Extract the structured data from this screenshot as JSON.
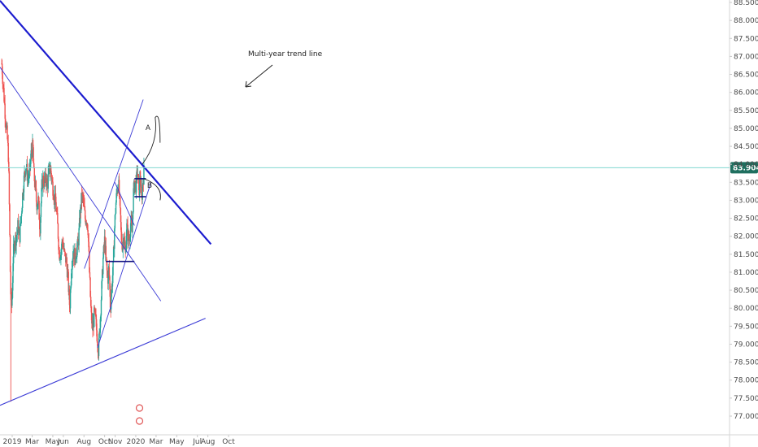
{
  "chart_data": {
    "type": "candlestick",
    "title": "",
    "xlabel": "",
    "ylabel": "",
    "grid": false,
    "x_ticks": [
      "2019",
      "Mar",
      "May",
      "Jun",
      "Aug",
      "Oct",
      "Nov",
      "2020",
      "Mar",
      "May",
      "Jul",
      "Aug",
      "Oct"
    ],
    "y_ticks": [
      "88.500",
      "88.000",
      "87.500",
      "87.000",
      "86.500",
      "86.000",
      "85.500",
      "85.000",
      "84.500",
      "84.000",
      "83.500",
      "83.000",
      "82.500",
      "82.000",
      "81.500",
      "81.000",
      "80.500",
      "80.000",
      "79.500",
      "79.000",
      "78.500",
      "78.000",
      "77.500",
      "77.000"
    ],
    "ylim": [
      77.0,
      88.5
    ],
    "last_price": "83.904",
    "annotations": {
      "trend_label": "Multi-year trend line",
      "wave_a": "A",
      "wave_b": "B"
    },
    "series": [
      {
        "ohlc_path": [
          [
            "2018-12-01",
            86.8
          ],
          [
            "2018-12-07",
            86.0
          ],
          [
            "2018-12-12",
            85.3
          ],
          [
            "2018-12-17",
            84.8
          ],
          [
            "2018-12-21",
            84.2
          ],
          [
            "2018-12-24",
            82.5
          ],
          [
            "2018-12-27",
            80.5
          ],
          [
            "2018-12-31",
            80.0
          ],
          [
            "2019-01-04",
            81.5
          ],
          [
            "2019-01-09",
            81.9
          ],
          [
            "2019-01-14",
            82.0
          ],
          [
            "2019-01-18",
            82.3
          ],
          [
            "2019-01-23",
            82.0
          ],
          [
            "2019-01-27",
            82.5
          ],
          [
            "2019-02-01",
            83.2
          ],
          [
            "2019-02-06",
            83.7
          ],
          [
            "2019-02-11",
            84.0
          ],
          [
            "2019-02-16",
            83.6
          ],
          [
            "2019-02-21",
            83.7
          ],
          [
            "2019-02-26",
            84.3
          ],
          [
            "2019-03-03",
            84.5
          ],
          [
            "2019-03-06",
            83.7
          ],
          [
            "2019-03-10",
            83.4
          ],
          [
            "2019-03-14",
            82.9
          ],
          [
            "2019-03-19",
            83.0
          ],
          [
            "2019-03-24",
            82.2
          ],
          [
            "2019-03-28",
            83.1
          ],
          [
            "2019-04-01",
            83.6
          ],
          [
            "2019-04-06",
            83.5
          ],
          [
            "2019-04-11",
            83.6
          ],
          [
            "2019-04-15",
            83.4
          ],
          [
            "2019-04-19",
            83.8
          ],
          [
            "2019-04-24",
            83.9
          ],
          [
            "2019-04-29",
            83.5
          ],
          [
            "2019-05-05",
            83.1
          ],
          [
            "2019-05-10",
            82.9
          ],
          [
            "2019-05-15",
            82.3
          ],
          [
            "2019-05-20",
            81.5
          ],
          [
            "2019-05-25",
            81.6
          ],
          [
            "2019-05-30",
            81.9
          ],
          [
            "2019-06-04",
            81.5
          ],
          [
            "2019-06-10",
            81.3
          ],
          [
            "2019-06-15",
            80.8
          ],
          [
            "2019-06-20",
            80.0
          ],
          [
            "2019-06-25",
            81.2
          ],
          [
            "2019-06-30",
            81.6
          ],
          [
            "2019-07-05",
            81.4
          ],
          [
            "2019-07-10",
            81.6
          ],
          [
            "2019-07-15",
            81.8
          ],
          [
            "2019-07-20",
            82.5
          ],
          [
            "2019-07-25",
            83.1
          ],
          [
            "2019-07-30",
            83.0
          ],
          [
            "2019-08-04",
            82.5
          ],
          [
            "2019-08-09",
            82.5
          ],
          [
            "2019-08-13",
            82.2
          ],
          [
            "2019-08-17",
            81.0
          ],
          [
            "2019-08-22",
            79.8
          ],
          [
            "2019-08-27",
            79.4
          ],
          [
            "2019-09-01",
            79.9
          ],
          [
            "2019-09-05",
            79.6
          ],
          [
            "2019-09-09",
            79.2
          ],
          [
            "2019-09-13",
            78.8
          ],
          [
            "2019-09-18",
            79.7
          ],
          [
            "2019-09-22",
            80.5
          ],
          [
            "2019-09-26",
            81.3
          ],
          [
            "2019-10-01",
            81.9
          ],
          [
            "2019-10-06",
            81.2
          ],
          [
            "2019-10-10",
            80.8
          ],
          [
            "2019-10-14",
            81.1
          ],
          [
            "2019-10-18",
            80.0
          ],
          [
            "2019-10-22",
            80.6
          ],
          [
            "2019-10-26",
            81.1
          ],
          [
            "2019-10-30",
            82.2
          ],
          [
            "2019-11-03",
            82.9
          ],
          [
            "2019-11-07",
            83.3
          ],
          [
            "2019-11-11",
            83.5
          ],
          [
            "2019-11-15",
            82.8
          ],
          [
            "2019-11-19",
            82.0
          ],
          [
            "2019-11-23",
            81.7
          ],
          [
            "2019-11-27",
            82.1
          ],
          [
            "2019-12-01",
            81.4
          ],
          [
            "2019-12-05",
            82.3
          ],
          [
            "2019-12-09",
            82.0
          ],
          [
            "2019-12-13",
            81.9
          ],
          [
            "2019-12-17",
            82.4
          ],
          [
            "2019-12-21",
            82.1
          ],
          [
            "2019-12-25",
            83.2
          ],
          [
            "2019-12-29",
            83.5
          ],
          [
            "2020-01-02",
            83.4
          ],
          [
            "2020-01-06",
            83.9
          ],
          [
            "2020-01-10",
            83.2
          ],
          [
            "2020-01-14",
            83.7
          ],
          [
            "2020-01-18",
            83.0
          ],
          [
            "2020-01-22",
            83.5
          ],
          [
            "2020-01-26",
            83.904
          ]
        ]
      }
    ]
  },
  "colors": {
    "up": "#26a69a",
    "down": "#ef5350",
    "trendline_major": "#1c1ccf",
    "trendline_minor": "#3b3bd6",
    "price_line": "#7fd6d0",
    "price_tag": "#1f6f5f",
    "axis_text": "#4a4a4a"
  }
}
